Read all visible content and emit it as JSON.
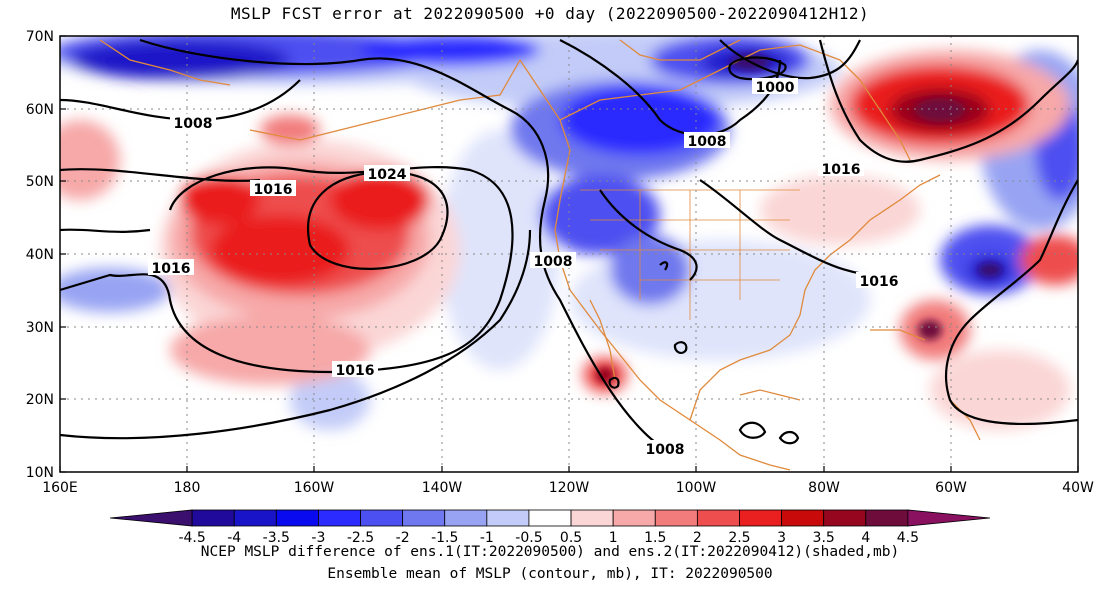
{
  "title": "MSLP FCST error at 2022090500 +0 day (2022090500-2022090412H12)",
  "lat_labels": [
    "70N",
    "60N",
    "50N",
    "40N",
    "30N",
    "20N",
    "10N"
  ],
  "lon_labels": [
    "160E",
    "180",
    "160W",
    "140W",
    "120W",
    "100W",
    "80W",
    "60W",
    "40W"
  ],
  "contours": [
    {
      "label": "1000",
      "value": 1000
    },
    {
      "label": "1008",
      "value": 1008
    },
    {
      "label": "1008",
      "value": 1008
    },
    {
      "label": "1008",
      "value": 1008
    },
    {
      "label": "1008",
      "value": 1008
    },
    {
      "label": "1016",
      "value": 1016
    },
    {
      "label": "1016",
      "value": 1016
    },
    {
      "label": "1016",
      "value": 1016
    },
    {
      "label": "1016",
      "value": 1016
    },
    {
      "label": "1016",
      "value": 1016
    },
    {
      "label": "1024",
      "value": 1024
    }
  ],
  "colorbar": {
    "labels": [
      "-4.5",
      "-4",
      "-3.5",
      "-3",
      "-2.5",
      "-2",
      "-1.5",
      "-1",
      "-0.5",
      "0.5",
      "1",
      "1.5",
      "2",
      "2.5",
      "3",
      "3.5",
      "4",
      "4.5"
    ],
    "colors": [
      "#3a0f6e",
      "#1f0a9c",
      "#1a14c8",
      "#0a0af0",
      "#2b2bff",
      "#4d50f0",
      "#6f78ee",
      "#98a4f3",
      "#c3ccf8",
      "#ffffff",
      "#fbd6d6",
      "#f7a8a8",
      "#f27b7b",
      "#ee4e4e",
      "#ea1f1f",
      "#c80a0a",
      "#96061e",
      "#6e0c3c",
      "#8a1060"
    ]
  },
  "caption1": "NCEP MSLP difference of ens.1(IT:2022090500) and ens.2(IT:2022090412)(shaded,mb)",
  "caption2": "Ensemble mean of MSLP (contour, mb), IT: 2022090500"
}
